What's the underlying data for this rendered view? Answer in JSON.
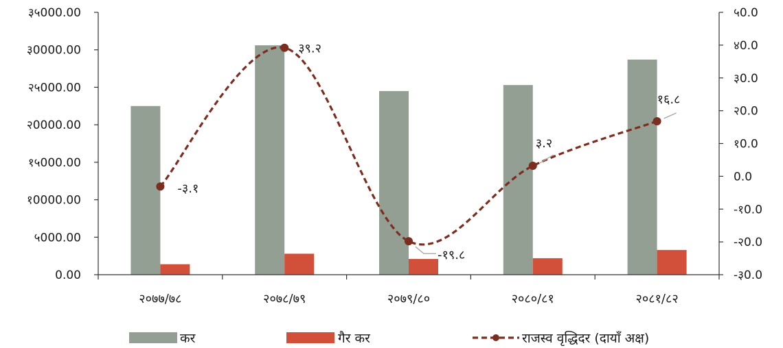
{
  "chart_data": {
    "type": "bar",
    "categories": [
      "२०७७/७८",
      "२०७८/७९",
      "२०७९/८०",
      "२०८०/८१",
      "२०८१/८२"
    ],
    "series": [
      {
        "name": "कर",
        "kind": "bar",
        "axis": "left",
        "color": "#939f93",
        "values": [
          22500,
          30600,
          24500,
          25300,
          28700
        ]
      },
      {
        "name": "गैर कर",
        "kind": "bar",
        "axis": "left",
        "color": "#d24f3a",
        "values": [
          1400,
          2800,
          2100,
          2200,
          3300
        ]
      },
      {
        "name": "राजस्व वृद्धिदर (दायाँ अक्ष)",
        "kind": "line",
        "axis": "right",
        "color": "#7b2d1f",
        "values": [
          -3.1,
          39.2,
          -19.8,
          3.2,
          16.8
        ],
        "labels": [
          "-३.१",
          "३९.२",
          "-१९.८",
          "३.२",
          "१६.८"
        ]
      }
    ],
    "left_axis": {
      "ylim": [
        0,
        35000
      ],
      "ticks": [
        0,
        5000,
        10000,
        15000,
        20000,
        25000,
        30000,
        35000
      ],
      "tick_labels": [
        "0.00",
        "५000.00",
        "१0000.00",
        "१५000.00",
        "२0000.00",
        "२५000.00",
        "३0000.00",
        "३५000.00"
      ]
    },
    "right_axis": {
      "ylim": [
        -30,
        50
      ],
      "ticks": [
        -30,
        -20,
        -10,
        0,
        10,
        20,
        30,
        40,
        50
      ],
      "tick_labels": [
        "-३0.0",
        "-२0.0",
        "-१0.0",
        "0.0",
        "१0.0",
        "२0.0",
        "३0.0",
        "४0.0",
        "५0.0"
      ]
    },
    "grid": false,
    "legend_position": "bottom"
  }
}
